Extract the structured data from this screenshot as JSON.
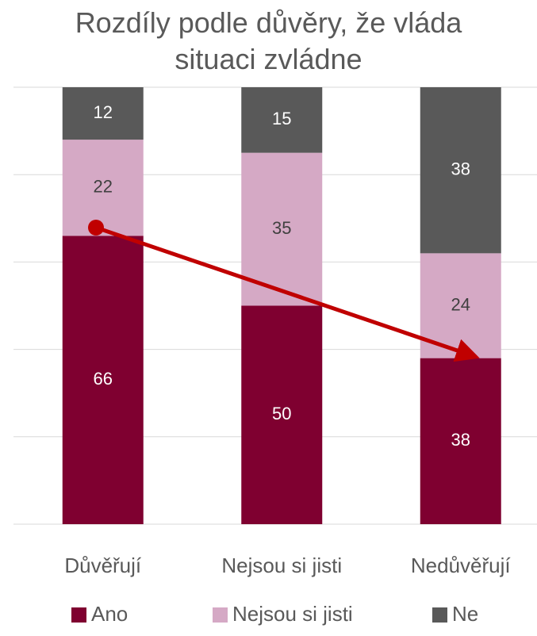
{
  "chart_data": {
    "type": "stacked_bar",
    "title": "Rozdíly podle důvěry, že vláda situaci zvládne",
    "categories": [
      "Důvěřují",
      "Nejsou si jisti",
      "Nedůvěřují"
    ],
    "series": [
      {
        "name": "Ano",
        "color": "#7f0030",
        "values": [
          66,
          50,
          38
        ]
      },
      {
        "name": "Nejsou si jisti",
        "color": "#d5a9c5",
        "values": [
          22,
          35,
          24
        ]
      },
      {
        "name": "Ne",
        "color": "#595959",
        "values": [
          12,
          15,
          38
        ]
      }
    ],
    "ylim": [
      0,
      100
    ],
    "yticks": [
      0,
      20,
      40,
      60,
      80,
      100
    ],
    "grid": true,
    "legend": "bottom"
  }
}
